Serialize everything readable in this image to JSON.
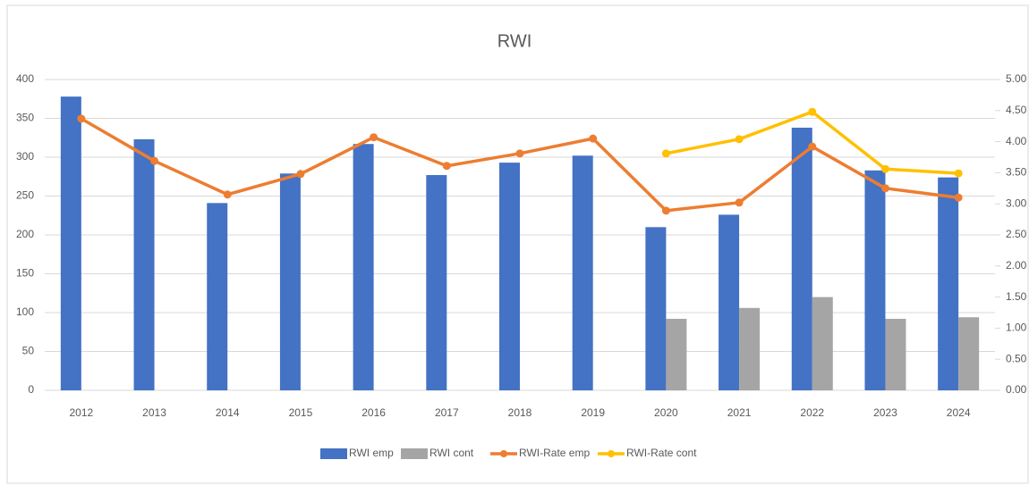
{
  "chart_data": {
    "type": "bar-line",
    "title": "RWI",
    "categories": [
      "2012",
      "2013",
      "2014",
      "2015",
      "2016",
      "2017",
      "2018",
      "2019",
      "2020",
      "2021",
      "2022",
      "2023",
      "2024"
    ],
    "series": [
      {
        "name": "RWI emp",
        "kind": "bar",
        "color": "#4472c4",
        "values": [
          378,
          323,
          241,
          279,
          317,
          277,
          293,
          302,
          210,
          226,
          338,
          283,
          274
        ]
      },
      {
        "name": "RWI cont",
        "kind": "bar",
        "color": "#a5a5a5",
        "values": [
          null,
          null,
          null,
          null,
          null,
          null,
          null,
          null,
          92,
          106,
          120,
          92,
          94
        ]
      },
      {
        "name": "RWI-Rate emp",
        "kind": "line",
        "axis": "y2",
        "color": "#ed7d31",
        "values": [
          4.37,
          3.69,
          3.15,
          3.48,
          4.07,
          3.61,
          3.81,
          4.05,
          2.89,
          3.02,
          3.92,
          3.25,
          3.1
        ]
      },
      {
        "name": "RWI-Rate cont",
        "kind": "line",
        "axis": "y2",
        "color": "#ffc000",
        "values": [
          null,
          null,
          null,
          null,
          null,
          null,
          null,
          null,
          3.81,
          4.04,
          4.48,
          3.56,
          3.49
        ]
      }
    ],
    "ylim": [
      0,
      400
    ],
    "yticks": [
      0,
      50,
      100,
      150,
      200,
      250,
      300,
      350,
      400
    ],
    "y2lim": [
      0,
      5
    ],
    "y2ticks": [
      {
        "value": 0,
        "label": "0.00"
      },
      {
        "value": 0.5,
        "label": "0.50"
      },
      {
        "value": 1,
        "label": "1.00"
      },
      {
        "value": 1.5,
        "label": "1.50"
      },
      {
        "value": 2,
        "label": "2.00"
      },
      {
        "value": 2.5,
        "label": "2.50"
      },
      {
        "value": 3,
        "label": "3.00"
      },
      {
        "value": 3.5,
        "label": "3.50"
      },
      {
        "value": 4,
        "label": "4.00"
      },
      {
        "value": 4.5,
        "label": "4.50"
      },
      {
        "value": 5,
        "label": "5.00"
      }
    ],
    "grid": true,
    "legend": "bottom"
  }
}
